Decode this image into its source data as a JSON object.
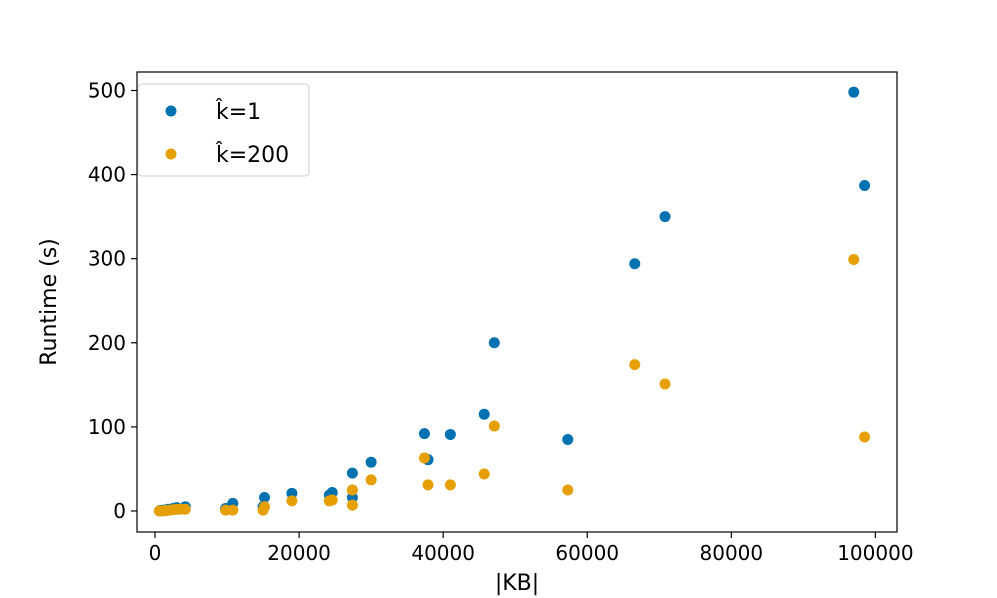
{
  "chart_data": {
    "type": "scatter",
    "title": "",
    "xlabel": "|KB|",
    "ylabel": "Runtime (s)",
    "xlim": [
      -2500,
      103000
    ],
    "ylim": [
      -25,
      522
    ],
    "xticks": [
      0,
      20000,
      40000,
      60000,
      80000,
      100000
    ],
    "yticks": [
      0,
      100,
      200,
      300,
      400,
      500
    ],
    "grid": false,
    "legend_position": "top-left",
    "series": [
      {
        "name": "k̂=1",
        "color": "#0072b2",
        "points": [
          [
            700,
            0.5
          ],
          [
            1200,
            1
          ],
          [
            1800,
            2
          ],
          [
            2500,
            3
          ],
          [
            3000,
            4
          ],
          [
            4200,
            5
          ],
          [
            9800,
            3
          ],
          [
            10800,
            9
          ],
          [
            15000,
            5
          ],
          [
            15200,
            16
          ],
          [
            19000,
            21
          ],
          [
            24200,
            19
          ],
          [
            24600,
            22
          ],
          [
            27400,
            16
          ],
          [
            27400,
            45
          ],
          [
            30000,
            58
          ],
          [
            37400,
            92
          ],
          [
            37900,
            61
          ],
          [
            41000,
            91
          ],
          [
            45700,
            115
          ],
          [
            47100,
            200
          ],
          [
            57300,
            85
          ],
          [
            66600,
            294
          ],
          [
            70800,
            350
          ],
          [
            97000,
            498
          ],
          [
            98500,
            387
          ]
        ]
      },
      {
        "name": "k̂=200",
        "color": "#e69f00",
        "points": [
          [
            600,
            0
          ],
          [
            1000,
            0
          ],
          [
            1500,
            0.5
          ],
          [
            2000,
            1
          ],
          [
            2500,
            1.5
          ],
          [
            3000,
            2
          ],
          [
            3500,
            2
          ],
          [
            4200,
            2
          ],
          [
            9800,
            1
          ],
          [
            10800,
            1
          ],
          [
            15000,
            1
          ],
          [
            15200,
            5
          ],
          [
            19000,
            12
          ],
          [
            24200,
            12
          ],
          [
            24600,
            13
          ],
          [
            27400,
            7
          ],
          [
            27400,
            25
          ],
          [
            30000,
            37
          ],
          [
            37400,
            63
          ],
          [
            37900,
            31
          ],
          [
            41000,
            31
          ],
          [
            45700,
            44
          ],
          [
            47100,
            101
          ],
          [
            57300,
            25
          ],
          [
            66600,
            174
          ],
          [
            70800,
            151
          ],
          [
            97000,
            299
          ],
          [
            98500,
            88
          ]
        ]
      }
    ]
  }
}
